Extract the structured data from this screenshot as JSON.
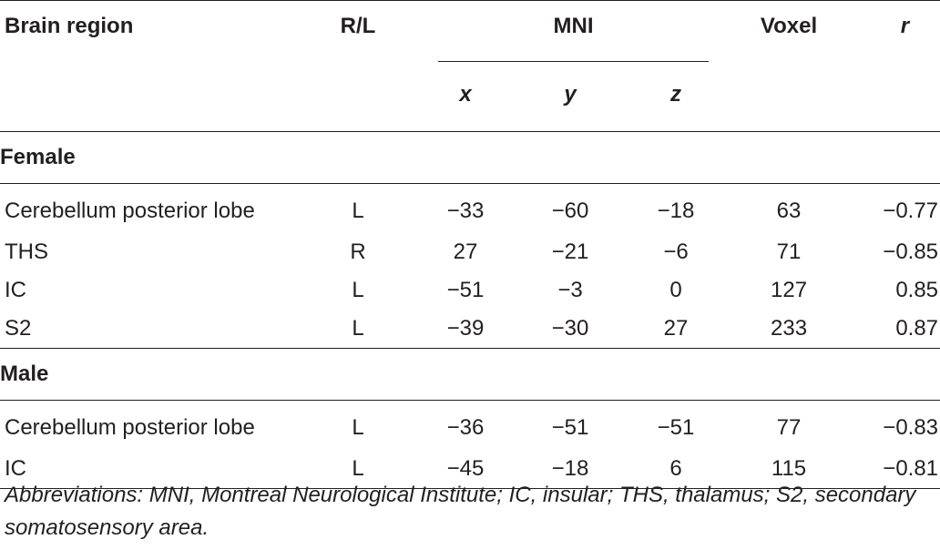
{
  "table": {
    "headers": {
      "region": "Brain region",
      "rl": "R/L",
      "mni": "MNI",
      "x": "x",
      "y": "y",
      "z": "z",
      "voxel": "Voxel",
      "r": "r"
    },
    "sections": [
      {
        "label": "Female",
        "rows": [
          {
            "region": "Cerebellum posterior lobe",
            "rl": "L",
            "x": "−33",
            "y": "−60",
            "z": "−18",
            "voxel": "63",
            "r": "−0.77"
          },
          {
            "region": "THS",
            "rl": "R",
            "x": "27",
            "y": "−21",
            "z": "−6",
            "voxel": "71",
            "r": "−0.85"
          },
          {
            "region": "IC",
            "rl": "L",
            "x": "−51",
            "y": "−3",
            "z": "0",
            "voxel": "127",
            "r": "0.85"
          },
          {
            "region": "S2",
            "rl": "L",
            "x": "−39",
            "y": "−30",
            "z": "27",
            "voxel": "233",
            "r": "0.87"
          }
        ]
      },
      {
        "label": "Male",
        "rows": [
          {
            "region": "Cerebellum posterior lobe",
            "rl": "L",
            "x": "−36",
            "y": "−51",
            "z": "−51",
            "voxel": "77",
            "r": "−0.83"
          },
          {
            "region": "IC",
            "rl": "L",
            "x": "−45",
            "y": "−18",
            "z": "6",
            "voxel": "115",
            "r": "−0.81"
          }
        ]
      }
    ]
  },
  "footnote": "Abbreviations: MNI, Montreal Neurological Institute; IC, insular; THS, thalamus; S2, secondary somatosensory area."
}
